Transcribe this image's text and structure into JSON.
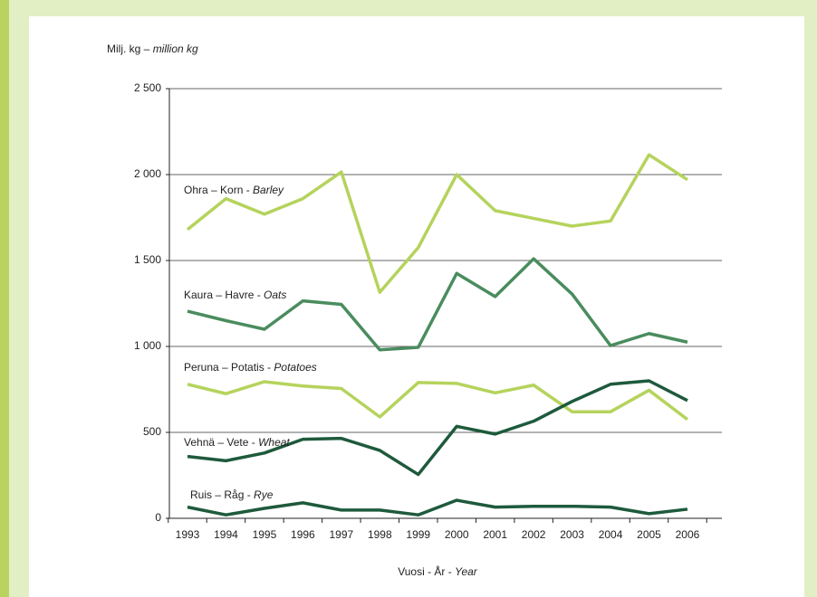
{
  "chart_data": {
    "type": "line",
    "y_label": "Milj. kg –",
    "y_label_en": "million kg",
    "x_label": "Vuosi - År -",
    "x_label_en": "Year",
    "categories": [
      "1993",
      "1994",
      "1995",
      "1996",
      "1997",
      "1998",
      "1999",
      "2000",
      "2001",
      "2002",
      "2003",
      "2004",
      "2005",
      "2006"
    ],
    "ylim": [
      0,
      2500
    ],
    "yticks": [
      0,
      500,
      {
        "value": 1000,
        "label": "1 000"
      },
      {
        "value": 1500,
        "label": "1 500"
      },
      {
        "value": 2000,
        "label": "2 000"
      },
      {
        "value": 2500,
        "label": "2 500"
      }
    ],
    "grid": true,
    "series": [
      {
        "name": "Ohra – Korn -",
        "name_en": "Barley",
        "color": "#b5d35c",
        "values": [
          1680,
          1860,
          1770,
          1860,
          2015,
          1315,
          1575,
          2000,
          1790,
          1745,
          1700,
          1730,
          2115,
          1970
        ]
      },
      {
        "name": "Kaura – Havre -",
        "name_en": "Oats",
        "color": "#4a8c5e",
        "values": [
          1205,
          1150,
          1100,
          1265,
          1245,
          980,
          995,
          1425,
          1290,
          1510,
          1305,
          1005,
          1075,
          1025
        ]
      },
      {
        "name": "Peruna – Potatis -",
        "name_en": "Potatoes",
        "color": "#b5d35c",
        "values": [
          780,
          725,
          795,
          770,
          755,
          590,
          790,
          785,
          730,
          775,
          620,
          620,
          745,
          575
        ]
      },
      {
        "name": "Vehnä – Vete -",
        "name_en": "Wheat",
        "color": "#1e5a3c",
        "values": [
          360,
          335,
          380,
          460,
          465,
          395,
          255,
          535,
          490,
          565,
          680,
          780,
          800,
          685
        ]
      },
      {
        "name": "Ruis – Råg -",
        "name_en": "Rye",
        "color": "#1e5a3c",
        "values": [
          65,
          20,
          58,
          90,
          48,
          48,
          20,
          105,
          65,
          70,
          70,
          65,
          27,
          53
        ]
      }
    ]
  }
}
